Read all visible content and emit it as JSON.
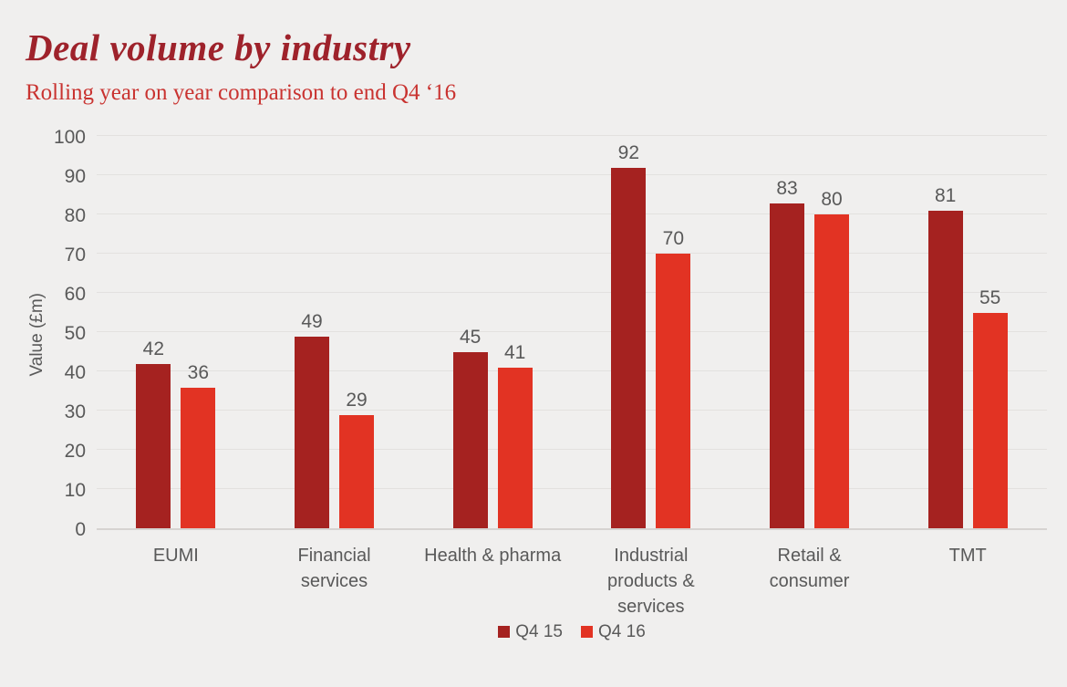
{
  "header": {
    "title": "Deal volume by industry",
    "subtitle": "Rolling year on year comparison to end Q4 ‘16"
  },
  "chart_data": {
    "type": "bar",
    "title": "Deal volume by industry",
    "subtitle": "Rolling year on year comparison to end Q4 ‘16",
    "categories": [
      "EUMI",
      "Financial\nservices",
      "Health & pharma",
      "Industrial\nproducts &\nservices",
      "Retail &\nconsumer",
      "TMT"
    ],
    "series": [
      {
        "name": "Q4 15",
        "color": "#a52220",
        "values": [
          42,
          49,
          45,
          92,
          83,
          81
        ]
      },
      {
        "name": "Q4 16",
        "color": "#e23323",
        "values": [
          36,
          29,
          41,
          70,
          80,
          55
        ]
      }
    ],
    "xlabel": "",
    "ylabel": "Value (£m)",
    "ylim": [
      0,
      100
    ],
    "ytick_step": 10,
    "grid": true,
    "data_labels": true,
    "legend_position": "bottom"
  },
  "colors": {
    "background": "#f0efee",
    "title": "#9e222b",
    "subtitle": "#c93330",
    "axis_text": "#595959",
    "gridline": "#e3e1df",
    "axis_line": "#d6d3d1",
    "series_q4_15": "#a52220",
    "series_q4_16": "#e23323"
  }
}
